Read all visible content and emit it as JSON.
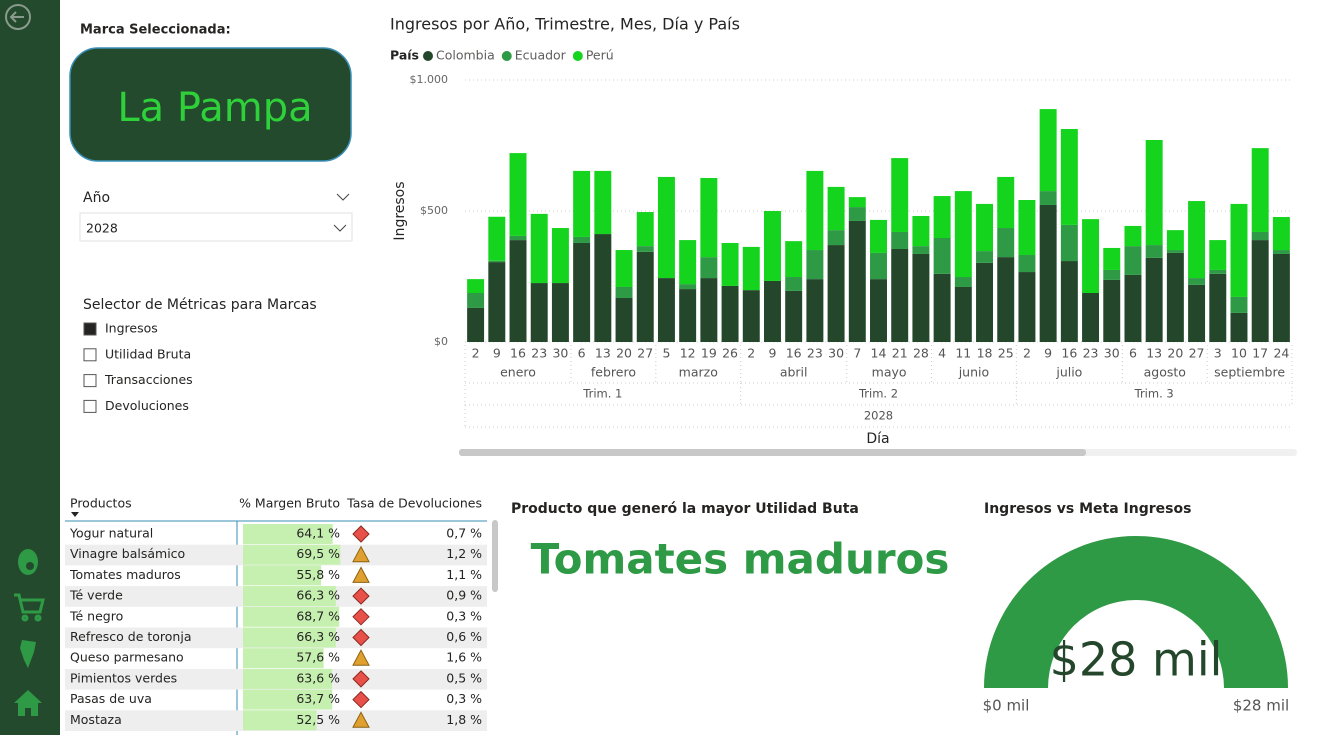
{
  "brand_card": {
    "title": "Marca Seleccionada:",
    "value": "La Pampa"
  },
  "year_slicer": {
    "title": "Año",
    "selected": "2028"
  },
  "metric_selector": {
    "title": "Selector de Métricas para Marcas",
    "options": [
      {
        "label": "Ingresos",
        "checked": true
      },
      {
        "label": "Utilidad Bruta",
        "checked": false
      },
      {
        "label": "Transacciones",
        "checked": false
      },
      {
        "label": "Devoluciones",
        "checked": false
      }
    ]
  },
  "chart": {
    "type": "bar",
    "stacked": true,
    "title": "Ingresos por Año, Trimestre, Mes, Día y País",
    "legend_title": "País",
    "y_label": "Ingresos",
    "x_label": "Día",
    "ylim": [
      0,
      1000
    ],
    "yticks": [
      {
        "value": 0,
        "label": "$0"
      },
      {
        "value": 500,
        "label": "$500"
      },
      {
        "value": 1000,
        "label": "$1.000"
      }
    ],
    "grid": true,
    "x_hierarchy": {
      "name": "2028",
      "quarters": [
        {
          "name": "Trim. 1",
          "months": [
            {
              "name": "enero",
              "days": [
                "2",
                "9",
                "16",
                "23",
                "30"
              ]
            },
            {
              "name": "febrero",
              "days": [
                "6",
                "13",
                "20",
                "27"
              ]
            },
            {
              "name": "marzo",
              "days": [
                "5",
                "12",
                "19",
                "26"
              ]
            }
          ]
        },
        {
          "name": "Trim. 2",
          "months": [
            {
              "name": "abril",
              "days": [
                "2",
                "9",
                "16",
                "23",
                "30"
              ]
            },
            {
              "name": "mayo",
              "days": [
                "7",
                "14",
                "21",
                "28"
              ]
            },
            {
              "name": "junio",
              "days": [
                "4",
                "11",
                "18",
                "25"
              ]
            }
          ]
        },
        {
          "name": "Trim. 3",
          "months": [
            {
              "name": "julio",
              "days": [
                "2",
                "9",
                "16",
                "23",
                "30"
              ]
            },
            {
              "name": "agosto",
              "days": [
                "6",
                "13",
                "20",
                "27"
              ]
            },
            {
              "name": "septiembre",
              "days": [
                "3",
                "10",
                "17",
                "24"
              ]
            }
          ]
        }
      ]
    },
    "series": [
      {
        "name": "Colombia",
        "color": "#24472c",
        "values": [
          130,
          305,
          389,
          225,
          225,
          378,
          412,
          168,
          344,
          244,
          202,
          244,
          214,
          198,
          233,
          195,
          240,
          370,
          462,
          240,
          355,
          336,
          260,
          210,
          302,
          324,
          267,
          523,
          309,
          187,
          237,
          256,
          321,
          340,
          218,
          260,
          111,
          389,
          336
        ]
      },
      {
        "name": "Ecuador",
        "color": "#2f9a45",
        "values": [
          57,
          5,
          16,
          0,
          0,
          23,
          0,
          42,
          22,
          0,
          19,
          80,
          0,
          0,
          0,
          53,
          111,
          57,
          53,
          100,
          65,
          30,
          137,
          38,
          45,
          111,
          65,
          53,
          138,
          0,
          38,
          110,
          49,
          11,
          26,
          15,
          61,
          31,
          15
        ]
      },
      {
        "name": "Perú",
        "color": "#14d41e",
        "values": [
          53,
          168,
          316,
          264,
          210,
          252,
          241,
          141,
          130,
          386,
          168,
          302,
          164,
          165,
          267,
          137,
          302,
          165,
          38,
          126,
          282,
          115,
          160,
          328,
          180,
          195,
          210,
          313,
          366,
          282,
          84,
          77,
          401,
          76,
          294,
          114,
          355,
          320,
          126
        ]
      }
    ]
  },
  "table": {
    "headers": [
      "Productos",
      "% Margen Bruto",
      "Tasa de Devoluciones"
    ],
    "products": [
      "Yogur natural",
      "Vinagre balsámico",
      "Tomates maduros",
      "Té verde",
      "Té negro",
      "Refresco de toronja",
      "Queso parmesano",
      "Pimientos verdes",
      "Pasas de uva",
      "Mostaza"
    ],
    "margin": {
      "values": [
        64.1,
        69.5,
        55.8,
        66.3,
        68.7,
        66.3,
        57.6,
        63.6,
        63.7,
        52.5
      ],
      "value_labels": [
        "64,1 %",
        "69,5 %",
        "55,8 %",
        "66,3 %",
        "68,7 %",
        "66,3 %",
        "57,6 %",
        "63,6 %",
        "63,7 %",
        "52,5 %"
      ]
    },
    "icons": [
      "diamond",
      "triangle",
      "triangle",
      "diamond",
      "diamond",
      "diamond",
      "triangle",
      "diamond",
      "diamond",
      "triangle"
    ],
    "returns": [
      "0,7 %",
      "1,2 %",
      "1,1 %",
      "0,9 %",
      "0,3 %",
      "0,6 %",
      "1,6 %",
      "0,5 %",
      "0,3 %",
      "1,8 %"
    ]
  },
  "top_product_card": {
    "title": "Producto que generó la mayor Utilidad Buta",
    "value": "Tomates maduros"
  },
  "gauge": {
    "title": "Ingresos vs Meta Ingresos",
    "value": 28,
    "value_label": "$28 mil",
    "min": {
      "value": 0,
      "label": "$0 mil"
    },
    "max": {
      "value": 28,
      "label": "$28 mil"
    }
  }
}
